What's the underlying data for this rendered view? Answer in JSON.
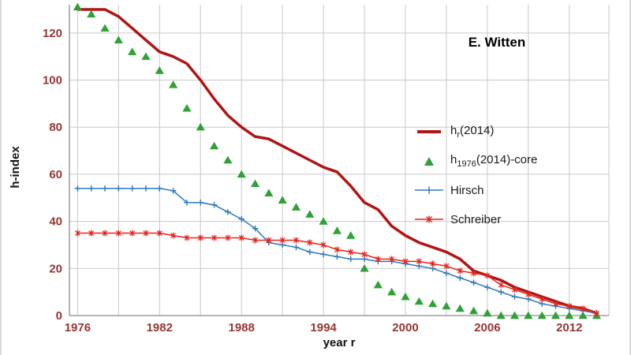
{
  "colors": {
    "tick_label": "#963634",
    "grid": "#c9c9c9",
    "axis": "#8c8c8c"
  },
  "chart_data": {
    "type": "line",
    "annotation": "E. Witten",
    "xlabel": "year r",
    "ylabel": "h-index",
    "x_min": 1975.4,
    "x_max": 2014.9,
    "ylim": [
      0,
      132
    ],
    "x_ticks": [
      1976,
      1982,
      1988,
      1994,
      2000,
      2006,
      2012
    ],
    "grid_years": [
      1976,
      1979,
      1982,
      1985,
      1988,
      1991,
      1994,
      1997,
      2000,
      2003,
      2006,
      2009,
      2012
    ],
    "y_ticks": [
      0,
      20,
      40,
      60,
      80,
      100,
      120
    ],
    "grid": "on",
    "legend_position": "middle-right",
    "years": [
      1976,
      1977,
      1978,
      1979,
      1980,
      1981,
      1982,
      1983,
      1984,
      1985,
      1986,
      1987,
      1988,
      1989,
      1990,
      1991,
      1992,
      1993,
      1994,
      1995,
      1996,
      1997,
      1998,
      1999,
      2000,
      2001,
      2002,
      2003,
      2004,
      2005,
      2006,
      2007,
      2008,
      2009,
      2010,
      2011,
      2012,
      2013,
      2014
    ],
    "series": [
      {
        "name": "h_r(2014)",
        "color": "#b01513",
        "line": true,
        "width": 3.5,
        "marker": "none",
        "values": [
          130,
          130,
          130,
          127,
          122,
          117,
          112,
          110,
          107,
          100,
          92,
          85,
          80,
          76,
          75,
          72,
          69,
          66,
          63,
          61,
          55,
          48,
          45,
          38,
          34,
          31,
          29,
          27,
          24,
          19,
          17,
          15,
          12,
          10,
          8,
          6,
          4,
          3,
          1
        ]
      },
      {
        "name": "h_1976(2014)-core",
        "color": "#2ea237",
        "line": false,
        "width": 0,
        "marker": "triangle",
        "values": [
          131,
          128,
          122,
          117,
          112,
          110,
          104,
          98,
          88,
          80,
          72,
          66,
          60,
          56,
          52,
          49,
          46,
          43,
          40,
          36,
          34,
          20,
          13,
          10,
          8,
          6,
          5,
          4,
          3,
          2,
          1,
          0,
          0,
          0,
          0,
          0,
          0,
          0,
          0
        ]
      },
      {
        "name": "Hirsch",
        "color": "#2e79bd",
        "line": true,
        "width": 1.5,
        "marker": "plus",
        "values": [
          54,
          54,
          54,
          54,
          54,
          54,
          54,
          53,
          48,
          48,
          47,
          44,
          41,
          37,
          31,
          30,
          29,
          27,
          26,
          25,
          24,
          24,
          23,
          23,
          22,
          21,
          20,
          18,
          16,
          14,
          12,
          10,
          8,
          7,
          5,
          4,
          3,
          2,
          1
        ]
      },
      {
        "name": "Schreiber",
        "color": "#e8231a",
        "line": true,
        "width": 1.5,
        "marker": "star",
        "values": [
          35,
          35,
          35,
          35,
          35,
          35,
          35,
          34,
          33,
          33,
          33,
          33,
          33,
          32,
          32,
          32,
          32,
          31,
          30,
          28,
          27,
          26,
          24,
          24,
          23,
          23,
          22,
          21,
          19,
          18,
          17,
          13,
          11,
          9,
          7,
          5,
          4,
          3,
          1
        ]
      }
    ],
    "legend": {
      "hr": {
        "pre": "h",
        "sub": "r",
        "post": "(2014)"
      },
      "core": {
        "pre": "h",
        "sub": "1976",
        "post": "(2014)-core"
      },
      "hirsch": "Hirsch",
      "schreiber": "Schreiber"
    }
  }
}
